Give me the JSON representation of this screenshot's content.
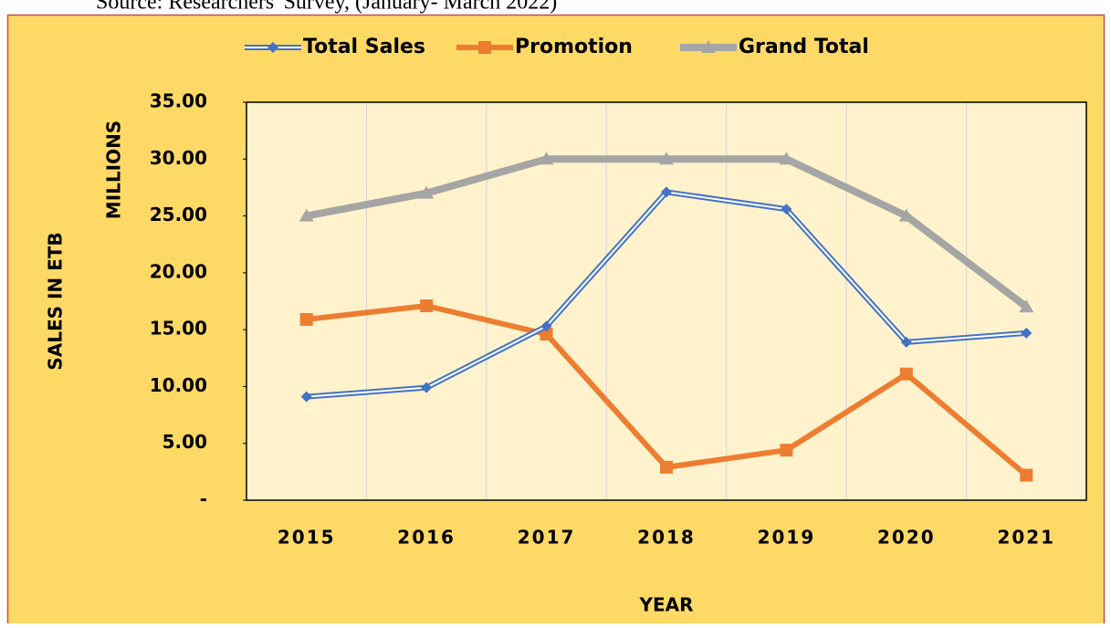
{
  "source": "Source: Researchers' Survey, (January- March 2022)",
  "chart_data": {
    "type": "line",
    "ylabel": "SALES IN ETB",
    "yunit": "MILLIONS",
    "xlabel": "YEAR",
    "categories": [
      "2015",
      "2016",
      "2017",
      "2018",
      "2019",
      "2020",
      "2021"
    ],
    "series": [
      {
        "name": "Total Sales",
        "color": "#4472c4",
        "marker": "diamond",
        "values": [
          9.1,
          9.9,
          15.3,
          27.1,
          25.6,
          13.9,
          14.7
        ]
      },
      {
        "name": "Promotion",
        "color": "#ed7d31",
        "marker": "square",
        "values": [
          15.9,
          17.1,
          14.6,
          2.9,
          4.4,
          11.1,
          2.2
        ]
      },
      {
        "name": "Grand Total",
        "color": "#a5a5a5",
        "marker": "triangle",
        "values": [
          25.0,
          27.0,
          30.0,
          30.0,
          30.0,
          25.0,
          17.0
        ]
      }
    ],
    "ylim": [
      0,
      35
    ],
    "yticks": [
      {
        "value": 0,
        "label": "-"
      },
      {
        "value": 5,
        "label": "5.00"
      },
      {
        "value": 10,
        "label": "10.00"
      },
      {
        "value": 15,
        "label": "15.00"
      },
      {
        "value": 20,
        "label": "20.00"
      },
      {
        "value": 25,
        "label": "25.00"
      },
      {
        "value": 30,
        "label": "30.00"
      },
      {
        "value": 35,
        "label": "35.00"
      }
    ],
    "grid": "x",
    "legend": "top"
  }
}
